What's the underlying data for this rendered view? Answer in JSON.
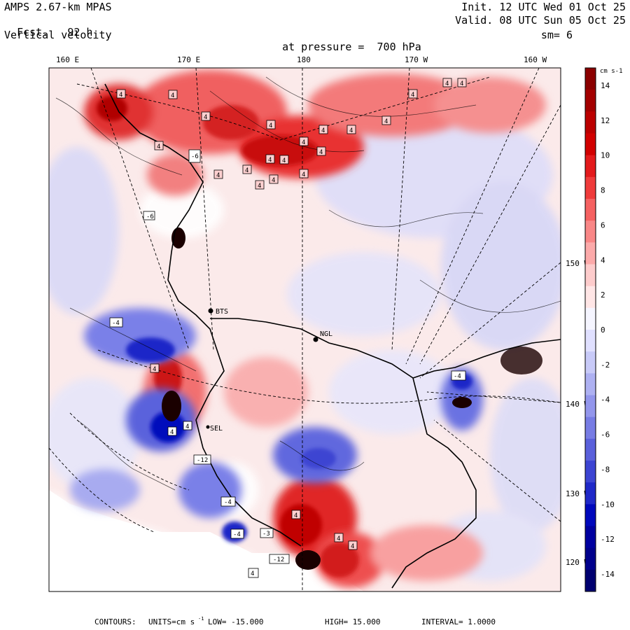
{
  "header": {
    "model": "AMPS 2.67-km MPAS",
    "fcst_label": "Fcst.",
    "fcst_value": "92 h",
    "field": "Vertical velocity",
    "level_label": "at pressure =",
    "level_value": "700 hPa",
    "init": "Init. 12 UTC Wed 01 Oct 25",
    "valid": "Valid. 08 UTC Sun 05 Oct 25",
    "smoothing": "sm= 6"
  },
  "lon_labels": [
    "160 E",
    "170 E",
    "180",
    "170 W",
    "160 W"
  ],
  "lat_labels": [
    "150 W",
    "140 W",
    "130 W",
    "120 W"
  ],
  "stations": [
    "BTS",
    "NGL",
    "SEL"
  ],
  "colorbar": {
    "units_label": "cm s-1",
    "ticks": [
      14,
      12,
      10,
      8,
      6,
      4,
      2,
      0,
      -2,
      -4,
      -6,
      -8,
      -10,
      -12,
      -14
    ],
    "colors": [
      "#8b0000",
      "#a30000",
      "#bb0000",
      "#d10000",
      "#e31a1c",
      "#ef3b3b",
      "#f56161",
      "#f98787",
      "#fcaaaa",
      "#fdcccc",
      "#ffe6e6",
      "#f5f5ff",
      "#e0e0ff",
      "#c8caf8",
      "#aeb1f2",
      "#9396ec",
      "#777ce4",
      "#5a60db",
      "#3c44d2",
      "#1f28c8",
      "#0008bc",
      "#0000a0",
      "#00008c",
      "#000070"
    ]
  },
  "footer": {
    "contours": "CONTOURS:",
    "units": "UNITS=cm s",
    "units_exp": "-1",
    "low": "LOW= -15.000",
    "high": "HIGH= 15.000",
    "interval": "INTERVAL= 1.0000"
  }
}
